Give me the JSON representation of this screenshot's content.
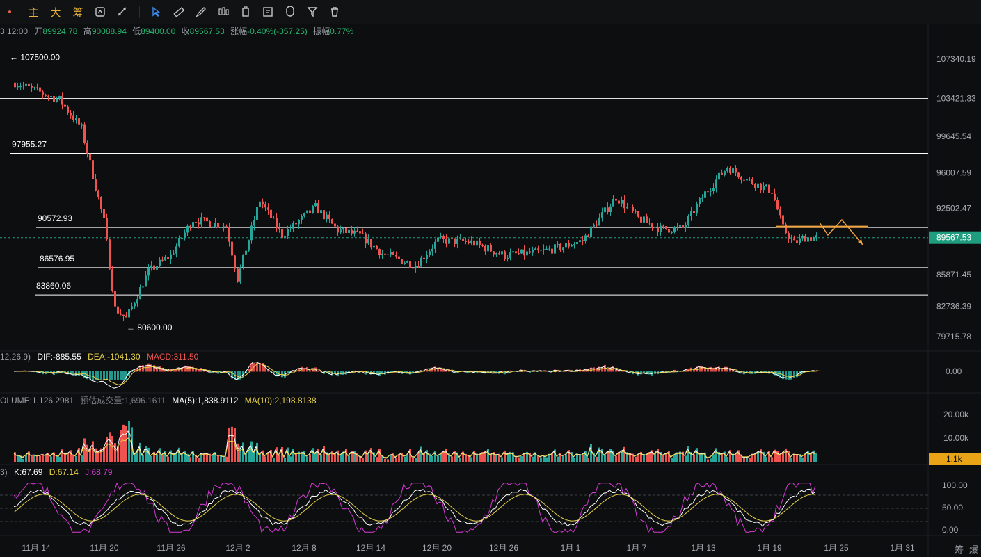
{
  "toolbar": {
    "buttons": [
      {
        "label": "主",
        "icon": "main-text-icon"
      },
      {
        "label": "大",
        "icon": "big-text-icon"
      },
      {
        "label": "筹",
        "icon": "chips-text-icon"
      }
    ],
    "tools": [
      "cursor-icon",
      "ruler-icon",
      "pen-icon",
      "candles-icon",
      "box-icon",
      "note-icon",
      "magnet-icon",
      "filter-icon",
      "trash-icon"
    ]
  },
  "ohlc": {
    "time": "3 12:00",
    "open_label": "开",
    "open": "89924.78",
    "high_label": "高",
    "high": "90088.94",
    "low_label": "低",
    "low": "89400.00",
    "close_label": "收",
    "close": "89567.53",
    "change_label": "涨幅",
    "change": "-0.40%(-357.25)",
    "amp_label": "振幅",
    "amp": "0.77%"
  },
  "macd_legend": {
    "params": "12,26,9)",
    "dif": "DIF:-885.55",
    "dea": "DEA:-1041.30",
    "macd": "MACD:311.50"
  },
  "volume_legend": {
    "volume": "OLUME:1,126.2981",
    "est": "预估成交量:1,696.1611",
    "ma5": "MA(5):1,838.9112",
    "ma10": "MA(10):2,198.8138"
  },
  "kdj_legend": {
    "params": "3)",
    "k": "K:67.69",
    "d": "D:67.14",
    "j": "J:68.79"
  },
  "colors": {
    "up": "#26a69a",
    "down": "#ef5350",
    "accent": "#f2a541",
    "price_tag": "#1f9e7f",
    "vol_tag": "#e8a317",
    "dea": "#e8d24a",
    "macd_txt": "#ef5350",
    "j_line": "#d63bd6"
  },
  "chart_data": {
    "type": "candlestick",
    "price_axis": {
      "ticks": [
        "107340.19",
        "103421.33",
        "99645.54",
        "96007.59",
        "92502.47",
        "85871.45",
        "82736.39",
        "79715.78"
      ],
      "last_price": "89567.53"
    },
    "x_ticks": [
      "11月 14",
      "11月 20",
      "11月 26",
      "12月 2",
      "12月 8",
      "12月 14",
      "12月 20",
      "12月 26",
      "1月 1",
      "1月 7",
      "1月 13",
      "1月 19",
      "1月 25",
      "1月 31"
    ],
    "levels": [
      {
        "value": 97955.27,
        "label": "97955.27"
      },
      {
        "value": 90572.93,
        "label": "90572.93"
      },
      {
        "value": 86576.95,
        "label": "86576.95"
      },
      {
        "value": 83860.06,
        "label": "83860.06"
      }
    ],
    "top_line": 103421.33,
    "annotations": [
      {
        "label": "← 107500.00",
        "value": 107500
      },
      {
        "label": "← 80600.00",
        "value": 80600
      }
    ],
    "path_points": [
      [
        11.12,
        105000
      ],
      [
        11.16,
        103300
      ],
      [
        11.18,
        100400
      ],
      [
        11.2,
        91200
      ],
      [
        11.21,
        82500
      ],
      [
        11.22,
        81500
      ],
      [
        11.24,
        86200
      ],
      [
        11.26,
        87800
      ],
      [
        11.28,
        91400
      ],
      [
        12.01,
        90700
      ],
      [
        12.02,
        85500
      ],
      [
        12.04,
        93300
      ],
      [
        12.06,
        89800
      ],
      [
        12.09,
        92600
      ],
      [
        12.11,
        90300
      ],
      [
        12.13,
        89800
      ],
      [
        12.15,
        88000
      ],
      [
        12.18,
        86800
      ],
      [
        12.2,
        89300
      ],
      [
        12.23,
        89100
      ],
      [
        12.26,
        87800
      ],
      [
        12.29,
        88100
      ],
      [
        12.31,
        88600
      ],
      [
        1.02,
        89300
      ],
      [
        1.05,
        93600
      ],
      [
        1.07,
        91500
      ],
      [
        1.09,
        90400
      ],
      [
        1.11,
        90500
      ],
      [
        1.13,
        94000
      ],
      [
        1.15,
        96600
      ],
      [
        1.17,
        95200
      ],
      [
        1.19,
        94200
      ],
      [
        1.2,
        90500
      ],
      [
        1.21,
        89000
      ],
      [
        1.22,
        89600
      ],
      [
        1.23,
        89567
      ]
    ],
    "volume_axis": {
      "ticks": [
        "20.00k",
        "10.00k"
      ],
      "last": "1.1k"
    },
    "kdj_axis": {
      "ticks": [
        "100.00",
        "50.00",
        "0.00"
      ]
    },
    "macd_axis": {
      "ticks": [
        "0.00"
      ]
    }
  },
  "corner": {
    "chips": "筹",
    "burst": "爆"
  }
}
